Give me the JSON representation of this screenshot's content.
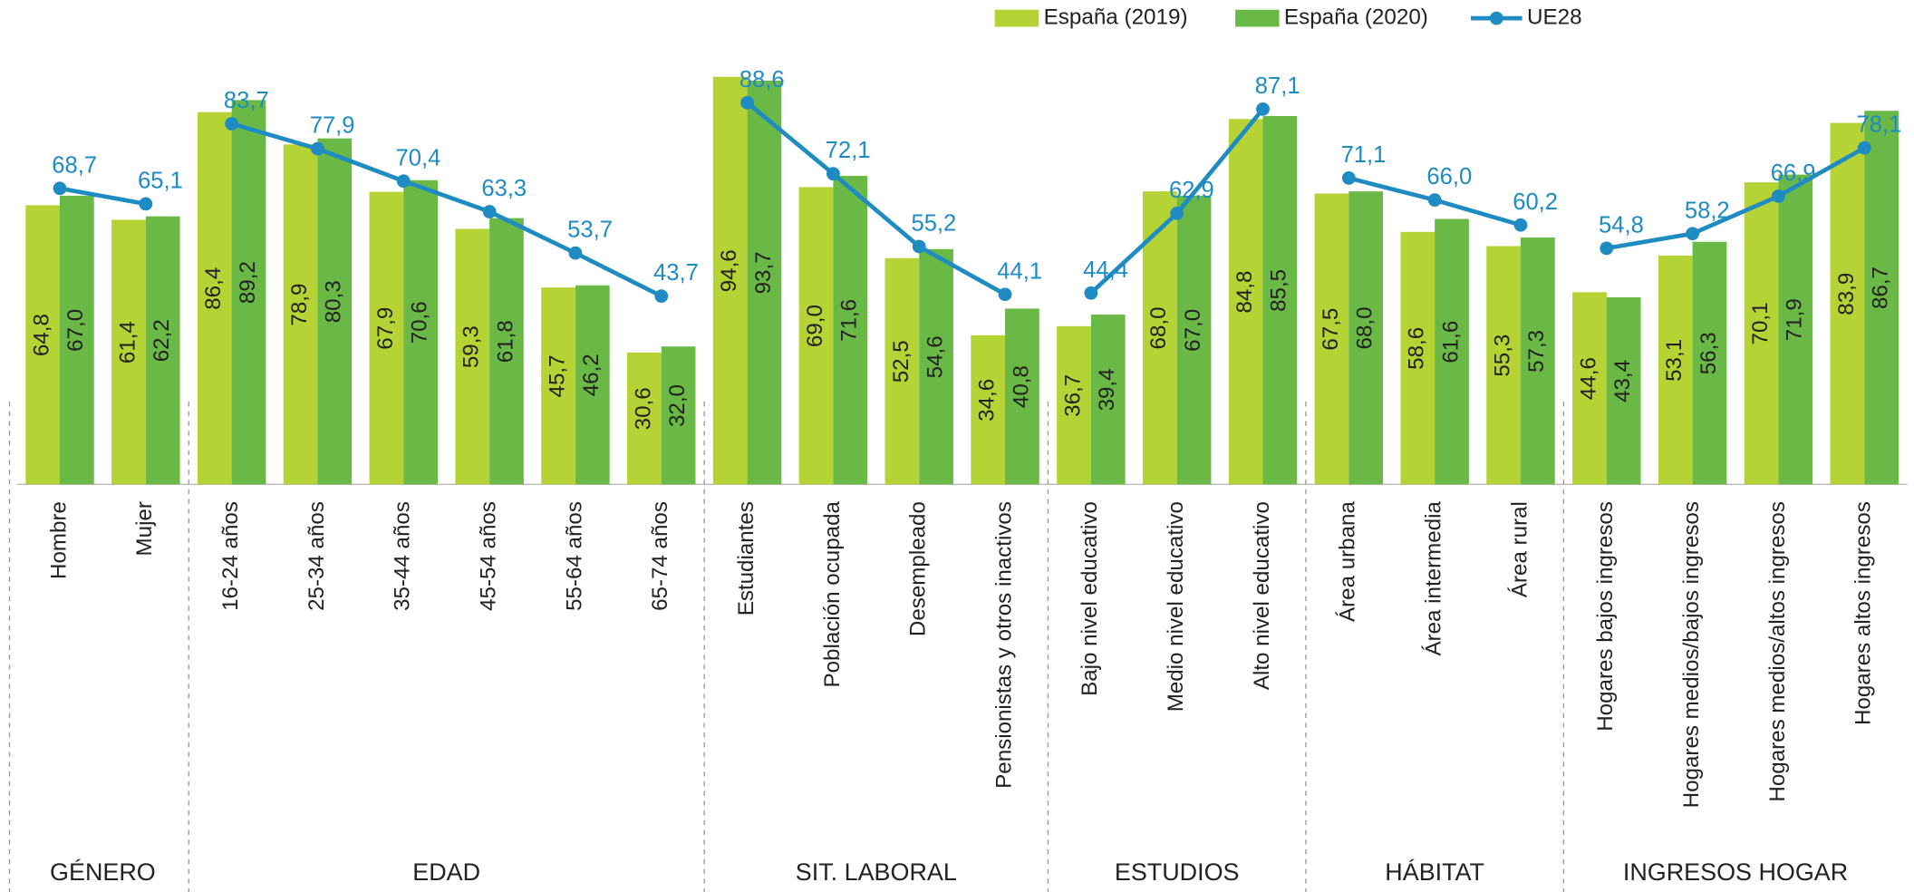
{
  "chart_data": {
    "type": "bar",
    "groups": [
      {
        "name": "GÉNERO",
        "categories": [
          "Hombre",
          "Mujer"
        ]
      },
      {
        "name": "EDAD",
        "categories": [
          "16-24 años",
          "25-34 años",
          "35-44 años",
          "45-54 años",
          "55-64 años",
          "65-74 años"
        ]
      },
      {
        "name": "SIT. LABORAL",
        "categories": [
          "Estudiantes",
          "Población ocupada",
          "Desempleado",
          "Pensionistas y otros inactivos"
        ]
      },
      {
        "name": "ESTUDIOS",
        "categories": [
          "Bajo nivel educativo",
          "Medio nivel educativo",
          "Alto nivel educativo"
        ]
      },
      {
        "name": "HÁBITAT",
        "categories": [
          "Área urbana",
          "Área intermedia",
          "Área rural"
        ]
      },
      {
        "name": "INGRESOS HOGAR",
        "categories": [
          "Hogares bajos ingresos",
          "Hogares medios/bajos ingresos",
          "Hogares medios/altos ingresos",
          "Hogares altos ingresos"
        ]
      }
    ],
    "ylim": [
      0,
      100
    ],
    "series": [
      {
        "name": "España (2019)",
        "type": "bar",
        "color": "#b5d334",
        "values": [
          64.8,
          61.4,
          86.4,
          78.9,
          67.9,
          59.3,
          45.7,
          30.6,
          94.6,
          69.0,
          52.5,
          34.6,
          36.7,
          68.0,
          84.8,
          67.5,
          58.6,
          55.3,
          44.6,
          53.1,
          70.1,
          83.9
        ],
        "value_labels": [
          "64,8",
          "61,4",
          "86,4",
          "78,9",
          "67,9",
          "59,3",
          "45,7",
          "30,6",
          "94,6",
          "69,0",
          "52,5",
          "34,6",
          "36,7",
          "68,0",
          "84,8",
          "67,5",
          "58,6",
          "55,3",
          "44,6",
          "53,1",
          "70,1",
          "83,9"
        ]
      },
      {
        "name": "España (2020)",
        "type": "bar",
        "color": "#6ab845",
        "values": [
          67.0,
          62.2,
          89.2,
          80.3,
          70.6,
          61.8,
          46.2,
          32.0,
          93.7,
          71.6,
          54.6,
          40.8,
          39.4,
          67.0,
          85.5,
          68.0,
          61.6,
          57.3,
          43.4,
          56.3,
          71.9,
          86.7
        ],
        "value_labels": [
          "67,0",
          "62,2",
          "89,2",
          "80,3",
          "70,6",
          "61,8",
          "46,2",
          "32,0",
          "93,7",
          "71,6",
          "54,6",
          "40,8",
          "39,4",
          "67,0",
          "85,5",
          "68,0",
          "61,6",
          "57,3",
          "43,4",
          "56,3",
          "71,9",
          "86,7"
        ]
      },
      {
        "name": "UE28",
        "type": "line",
        "color": "#1f8bc3",
        "values": [
          68.7,
          65.1,
          83.7,
          77.9,
          70.4,
          63.3,
          53.7,
          43.7,
          88.6,
          72.1,
          55.2,
          44.1,
          44.4,
          62.9,
          87.1,
          71.1,
          66.0,
          60.2,
          54.8,
          58.2,
          66.9,
          78.1
        ],
        "value_labels": [
          "68,7",
          "65,1",
          "83,7",
          "77,9",
          "70,4",
          "63,3",
          "53,7",
          "43,7",
          "88,6",
          "72,1",
          "55,2",
          "44,1",
          "44,4",
          "62,9",
          "87,1",
          "71,1",
          "66,0",
          "60,2",
          "54,8",
          "58,2",
          "66,9",
          "78,1"
        ]
      }
    ]
  }
}
